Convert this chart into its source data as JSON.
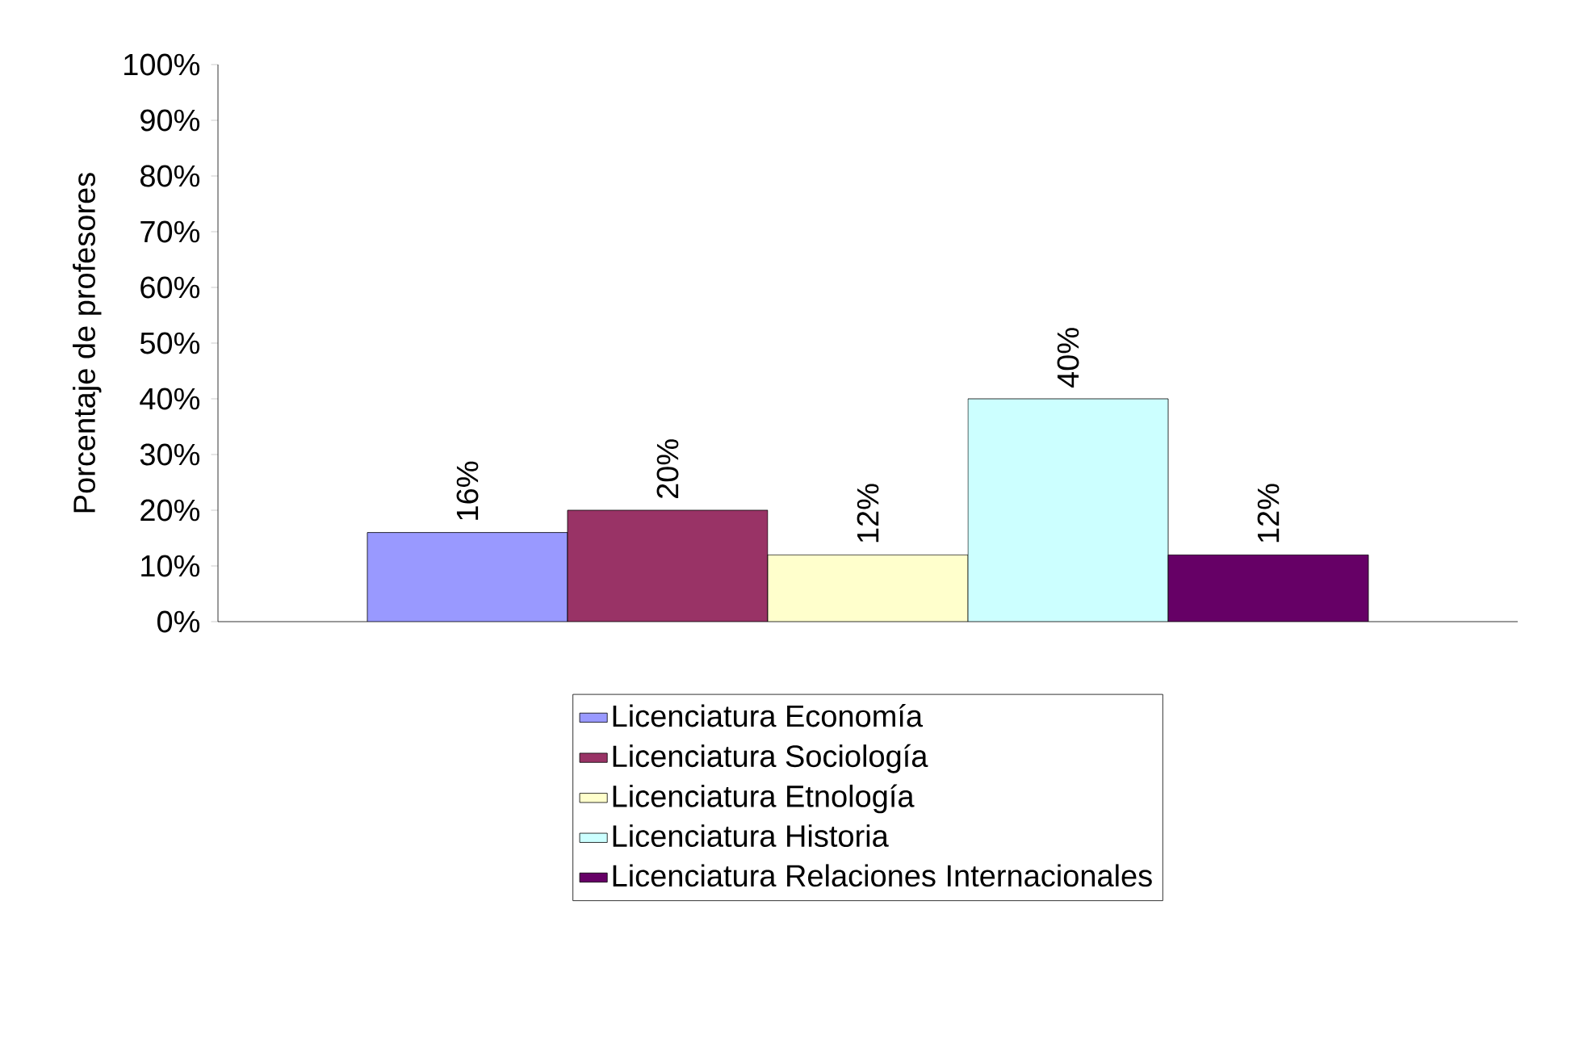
{
  "chart_data": {
    "type": "bar",
    "ylabel": "Porcentaje de profesores",
    "categories": [
      null
    ],
    "series": [
      {
        "name": "Licenciatura Economía",
        "color": "#9999ff",
        "values": [
          16
        ],
        "value_labels": [
          "16%"
        ]
      },
      {
        "name": "Licenciatura Sociología",
        "color": "#993366",
        "values": [
          20
        ],
        "value_labels": [
          "20%"
        ]
      },
      {
        "name": "Licenciatura Etnología",
        "color": "#ffffcc",
        "values": [
          12
        ],
        "value_labels": [
          "12%"
        ]
      },
      {
        "name": "Licenciatura Historia",
        "color": "#ccffff",
        "values": [
          40
        ],
        "value_labels": [
          "40%"
        ]
      },
      {
        "name": "Licenciatura Relaciones Internacionales",
        "color": "#660066",
        "values": [
          12
        ],
        "value_labels": [
          "12%"
        ]
      }
    ],
    "ylim": [
      0,
      100
    ],
    "yticks": [
      {
        "value": 0,
        "label": "0%"
      },
      {
        "value": 10,
        "label": "10%"
      },
      {
        "value": 20,
        "label": "20%"
      },
      {
        "value": 30,
        "label": "30%"
      },
      {
        "value": 40,
        "label": "40%"
      },
      {
        "value": 50,
        "label": "50%"
      },
      {
        "value": 60,
        "label": "60%"
      },
      {
        "value": 70,
        "label": "70%"
      },
      {
        "value": 80,
        "label": "80%"
      },
      {
        "value": 90,
        "label": "90%"
      },
      {
        "value": 100,
        "label": "100%"
      }
    ],
    "legend": "bottom",
    "grid": false
  }
}
